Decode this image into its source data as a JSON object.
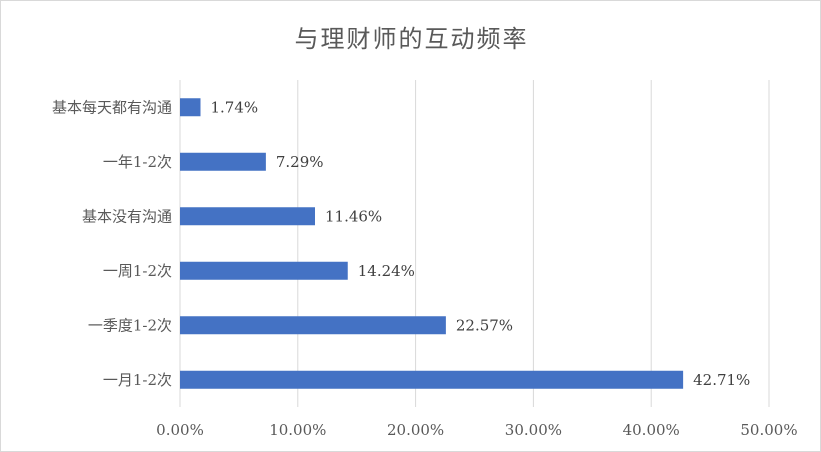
{
  "chart_data": {
    "type": "bar",
    "orientation": "horizontal",
    "title": "与理财师的互动频率",
    "categories": [
      "一月1-2次",
      "一季度1-2次",
      "一周1-2次",
      "基本没有沟通",
      "一年1-2次",
      "基本每天都有沟通"
    ],
    "values": [
      42.71,
      22.57,
      14.24,
      11.46,
      7.29,
      1.74
    ],
    "data_labels": [
      "42.71%",
      "22.57%",
      "14.24%",
      "11.46%",
      "7.29%",
      "1.74%"
    ],
    "xlim": [
      0,
      50
    ],
    "x_ticks": [
      0,
      10,
      20,
      30,
      40,
      50
    ],
    "x_tick_labels": [
      "0.00%",
      "10.00%",
      "20.00%",
      "30.00%",
      "40.00%",
      "50.00%"
    ],
    "bar_color": "#4472c4",
    "grid": true,
    "legend": "none"
  }
}
